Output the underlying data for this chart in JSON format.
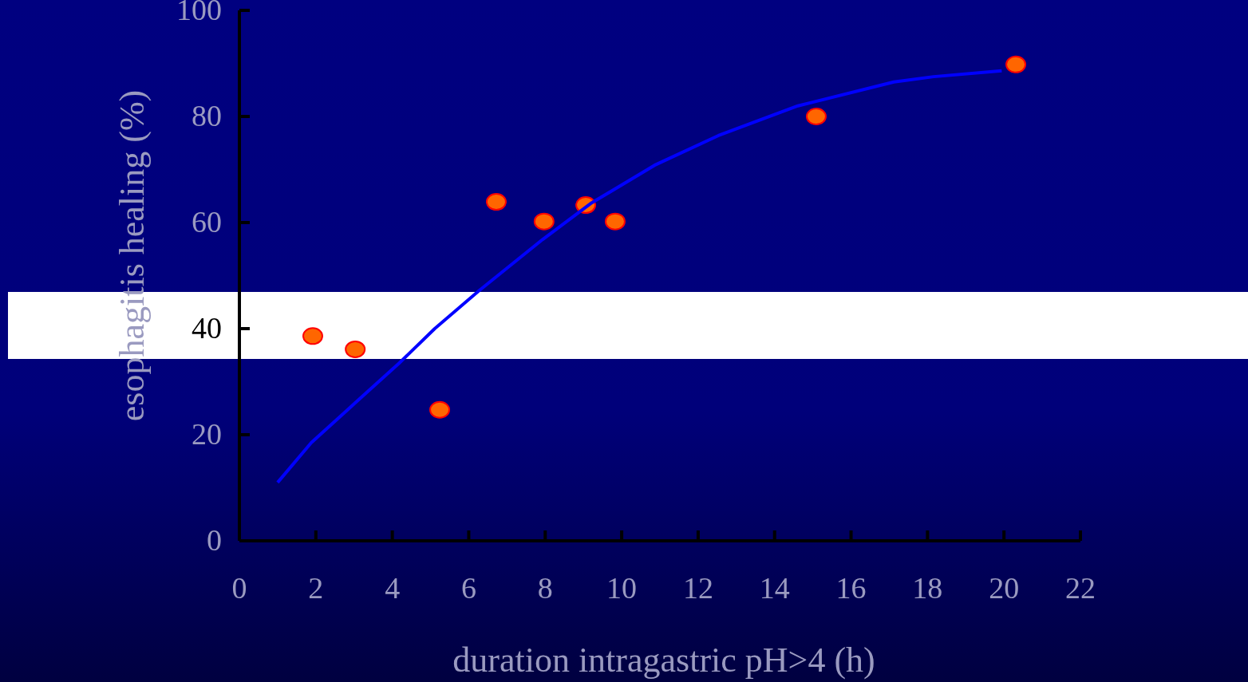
{
  "chart_data": {
    "type": "scatter",
    "xlabel": "duration intragastric pH>4 (h)",
    "ylabel": "esophagitis  healing (%)",
    "xlim": [
      0,
      22
    ],
    "ylim": [
      0,
      100
    ],
    "xticks": [
      0,
      2,
      4,
      6,
      8,
      10,
      12,
      14,
      16,
      18,
      20,
      22
    ],
    "yticks": [
      0,
      20,
      40,
      60,
      80,
      100
    ],
    "grid": false,
    "marker": "circle",
    "series": [
      {
        "color": "#ff6600",
        "x": [
          1.92,
          3.03,
          5.24,
          6.72,
          7.97,
          9.06,
          9.83,
          15.09,
          20.31
        ],
        "values": [
          38.6,
          36.1,
          24.7,
          63.9,
          60.2,
          63.3,
          60.2,
          80.0,
          89.8
        ]
      },
      {
        "type": "line",
        "color": "#0000ff",
        "line_style": "solid",
        "marker": "none",
        "x": [
          1.0,
          1.88,
          3.03,
          4.18,
          5.11,
          6.26,
          7.93,
          9.19,
          10.86,
          12.53,
          14.61,
          17.12,
          18.16,
          19.94
        ],
        "values": [
          11.0,
          18.5,
          26.0,
          33.5,
          40.0,
          47.1,
          56.8,
          63.6,
          70.8,
          76.4,
          82.0,
          86.5,
          87.5,
          88.6
        ]
      }
    ]
  }
}
